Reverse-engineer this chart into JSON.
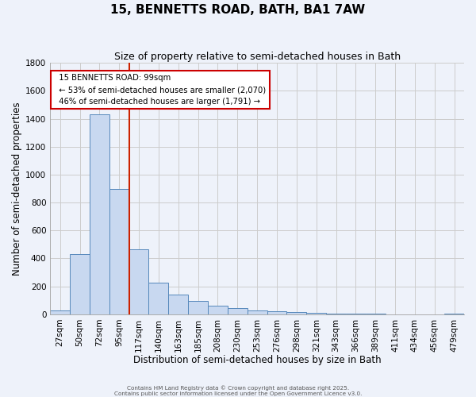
{
  "title": "15, BENNETTS ROAD, BATH, BA1 7AW",
  "subtitle": "Size of property relative to semi-detached houses in Bath",
  "xlabel": "Distribution of semi-detached houses by size in Bath",
  "ylabel": "Number of semi-detached properties",
  "bin_labels": [
    "27sqm",
    "50sqm",
    "72sqm",
    "95sqm",
    "117sqm",
    "140sqm",
    "163sqm",
    "185sqm",
    "208sqm",
    "230sqm",
    "253sqm",
    "276sqm",
    "298sqm",
    "321sqm",
    "343sqm",
    "366sqm",
    "389sqm",
    "411sqm",
    "434sqm",
    "456sqm",
    "479sqm"
  ],
  "bar_heights": [
    30,
    430,
    1430,
    900,
    465,
    225,
    140,
    95,
    60,
    45,
    30,
    22,
    16,
    8,
    5,
    3,
    2,
    1,
    1,
    1,
    5
  ],
  "bar_color": "#c8d8f0",
  "bar_edge_color": "#5588bb",
  "property_bin_index": 3,
  "annotation_title": "15 BENNETTS ROAD: 99sqm",
  "annotation_line1": "← 53% of semi-detached houses are smaller (2,070)",
  "annotation_line2": "46% of semi-detached houses are larger (1,791) →",
  "annotation_box_color": "#ffffff",
  "annotation_box_edge_color": "#cc0000",
  "red_line_color": "#cc2200",
  "grid_color": "#cccccc",
  "background_color": "#eef2fa",
  "ylim": [
    0,
    1800
  ],
  "yticks": [
    0,
    200,
    400,
    600,
    800,
    1000,
    1200,
    1400,
    1600,
    1800
  ],
  "title_fontsize": 11,
  "subtitle_fontsize": 9,
  "xlabel_fontsize": 8.5,
  "ylabel_fontsize": 8.5,
  "tick_fontsize": 7.5,
  "footer_line1": "Contains HM Land Registry data © Crown copyright and database right 2025.",
  "footer_line2": "Contains public sector information licensed under the Open Government Licence v3.0."
}
